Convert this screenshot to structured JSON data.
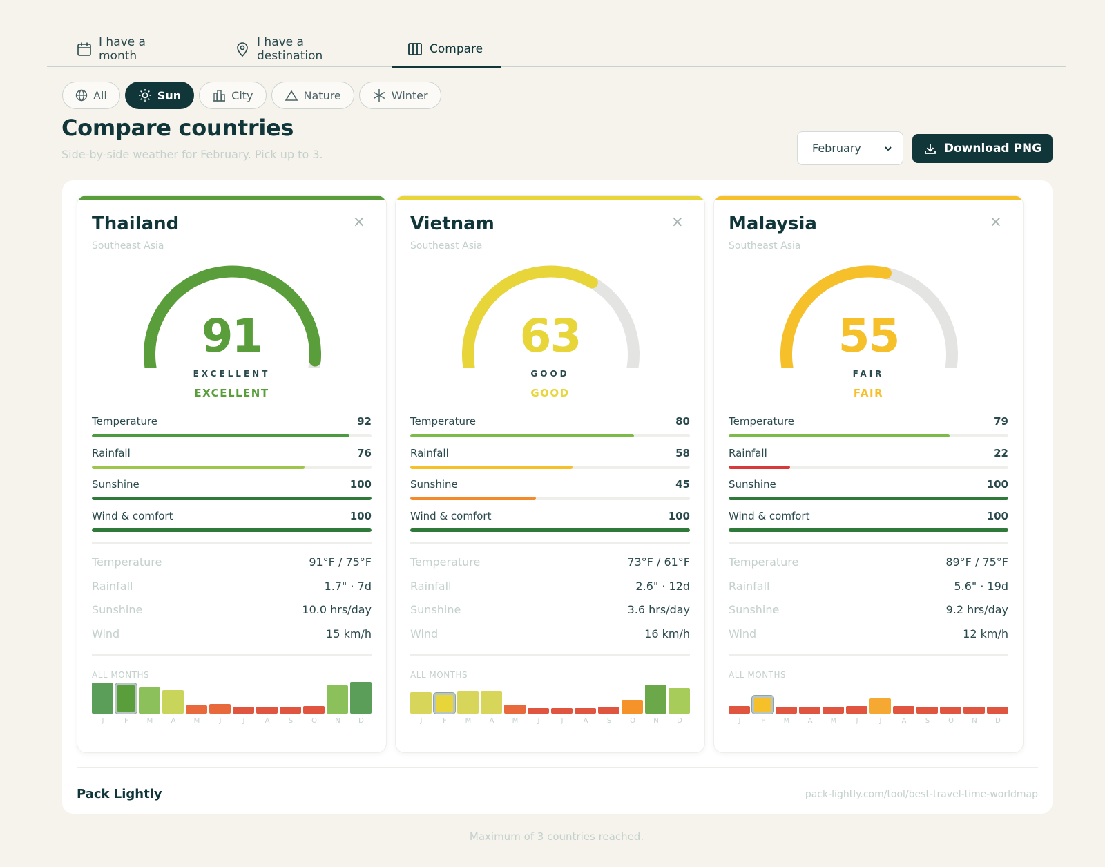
{
  "tabs": [
    {
      "label": "I have a month",
      "icon": "calendar-icon",
      "active": false
    },
    {
      "label": "I have a destination",
      "icon": "map-pin-icon",
      "active": false
    },
    {
      "label": "Compare",
      "icon": "columns-icon",
      "active": true
    }
  ],
  "filters": [
    {
      "label": "All",
      "icon": "globe-icon",
      "active": false
    },
    {
      "label": "Sun",
      "icon": "sun-icon",
      "active": true
    },
    {
      "label": "City",
      "icon": "city-icon",
      "active": false
    },
    {
      "label": "Nature",
      "icon": "mountain-icon",
      "active": false
    },
    {
      "label": "Winter",
      "icon": "snowflake-icon",
      "active": false
    }
  ],
  "header": {
    "title": "Compare countries",
    "subtitle": "Side-by-side weather for February. Pick up to 3.",
    "month_selected": "February",
    "download_label": "Download PNG"
  },
  "colors": {
    "primary": "#10363a",
    "excellent": "#5a9e3c",
    "good": "#e8d53a",
    "fair": "#f5c02a",
    "poor": "#e25c3c"
  },
  "cards": [
    {
      "name": "Thailand",
      "region": "Southeast Asia",
      "score": 91,
      "score_caption": "EXCELLENT",
      "rating": "EXCELLENT",
      "accent": "#5a9e3c",
      "metrics": [
        {
          "label": "Temperature",
          "value": 92,
          "color": "#4a9a3e"
        },
        {
          "label": "Rainfall",
          "value": 76,
          "color": "#9ec64e"
        },
        {
          "label": "Sunshine",
          "value": 100,
          "color": "#2f7a3a"
        },
        {
          "label": "Wind & comfort",
          "value": 100,
          "color": "#2f7a3a"
        }
      ],
      "details": [
        {
          "label": "Temperature",
          "value": "91°F / 75°F"
        },
        {
          "label": "Rainfall",
          "value": "1.7\" · 7d"
        },
        {
          "label": "Sunshine",
          "value": "10.0 hrs/day"
        },
        {
          "label": "Wind",
          "value": "15 km/h"
        }
      ],
      "all_months_label": "ALL MONTHS",
      "months": [
        {
          "label": "J",
          "score": 94,
          "color": "#5a9e5a"
        },
        {
          "label": "F",
          "score": 91,
          "color": "#5a9e3c"
        },
        {
          "label": "M",
          "score": 80,
          "color": "#8cc05a"
        },
        {
          "label": "A",
          "score": 70,
          "color": "#c8d45a"
        },
        {
          "label": "M",
          "score": 25,
          "color": "#e86a3c"
        },
        {
          "label": "J",
          "score": 30,
          "color": "#e86a3c"
        },
        {
          "label": "J",
          "score": 20,
          "color": "#e05540"
        },
        {
          "label": "A",
          "score": 20,
          "color": "#e05540"
        },
        {
          "label": "S",
          "score": 20,
          "color": "#e05540"
        },
        {
          "label": "O",
          "score": 23,
          "color": "#e05540"
        },
        {
          "label": "N",
          "score": 85,
          "color": "#8cc05a"
        },
        {
          "label": "D",
          "score": 96,
          "color": "#5a9e5a"
        }
      ],
      "selected_month": 1
    },
    {
      "name": "Vietnam",
      "region": "Southeast Asia",
      "score": 63,
      "score_caption": "GOOD",
      "rating": "GOOD",
      "accent": "#e8d53a",
      "metrics": [
        {
          "label": "Temperature",
          "value": 80,
          "color": "#7cbb4a"
        },
        {
          "label": "Rainfall",
          "value": 58,
          "color": "#f5c02a"
        },
        {
          "label": "Sunshine",
          "value": 45,
          "color": "#f58a2a"
        },
        {
          "label": "Wind & comfort",
          "value": 100,
          "color": "#2f7a3a"
        }
      ],
      "details": [
        {
          "label": "Temperature",
          "value": "73°F / 61°F"
        },
        {
          "label": "Rainfall",
          "value": "2.6\" · 12d"
        },
        {
          "label": "Sunshine",
          "value": "3.6 hrs/day"
        },
        {
          "label": "Wind",
          "value": "16 km/h"
        }
      ],
      "all_months_label": "ALL MONTHS",
      "months": [
        {
          "label": "J",
          "score": 65,
          "color": "#d8d65a"
        },
        {
          "label": "F",
          "score": 63,
          "color": "#e8d53a"
        },
        {
          "label": "M",
          "score": 68,
          "color": "#d8d65a"
        },
        {
          "label": "A",
          "score": 68,
          "color": "#d8d65a"
        },
        {
          "label": "M",
          "score": 28,
          "color": "#e86a3c"
        },
        {
          "label": "J",
          "score": 17,
          "color": "#e05540"
        },
        {
          "label": "J",
          "score": 17,
          "color": "#e05540"
        },
        {
          "label": "A",
          "score": 17,
          "color": "#e05540"
        },
        {
          "label": "S",
          "score": 20,
          "color": "#e05540"
        },
        {
          "label": "O",
          "score": 42,
          "color": "#f5922a"
        },
        {
          "label": "N",
          "score": 88,
          "color": "#6aa84a"
        },
        {
          "label": "D",
          "score": 78,
          "color": "#a8cc5a"
        }
      ],
      "selected_month": 1
    },
    {
      "name": "Malaysia",
      "region": "Southeast Asia",
      "score": 55,
      "score_caption": "FAIR",
      "rating": "FAIR",
      "accent": "#f5c02a",
      "metrics": [
        {
          "label": "Temperature",
          "value": 79,
          "color": "#7cbb4a"
        },
        {
          "label": "Rainfall",
          "value": 22,
          "color": "#d83a3a"
        },
        {
          "label": "Sunshine",
          "value": 100,
          "color": "#2f7a3a"
        },
        {
          "label": "Wind & comfort",
          "value": 100,
          "color": "#2f7a3a"
        }
      ],
      "details": [
        {
          "label": "Temperature",
          "value": "89°F / 75°F"
        },
        {
          "label": "Rainfall",
          "value": "5.6\" · 19d"
        },
        {
          "label": "Sunshine",
          "value": "9.2 hrs/day"
        },
        {
          "label": "Wind",
          "value": "12 km/h"
        }
      ],
      "all_months_label": "ALL MONTHS",
      "months": [
        {
          "label": "J",
          "score": 22,
          "color": "#e05540"
        },
        {
          "label": "F",
          "score": 55,
          "color": "#f5c02a"
        },
        {
          "label": "M",
          "score": 20,
          "color": "#e05540"
        },
        {
          "label": "A",
          "score": 20,
          "color": "#e05540"
        },
        {
          "label": "M",
          "score": 20,
          "color": "#e05540"
        },
        {
          "label": "J",
          "score": 22,
          "color": "#e05540"
        },
        {
          "label": "J",
          "score": 45,
          "color": "#f5a832"
        },
        {
          "label": "A",
          "score": 22,
          "color": "#e05540"
        },
        {
          "label": "S",
          "score": 20,
          "color": "#e05540"
        },
        {
          "label": "O",
          "score": 20,
          "color": "#e05540"
        },
        {
          "label": "N",
          "score": 20,
          "color": "#e05540"
        },
        {
          "label": "D",
          "score": 20,
          "color": "#e05540"
        }
      ],
      "selected_month": 1
    }
  ],
  "footer": {
    "brand": "Pack Lightly",
    "url": "pack-lightly.com/tool/best-travel-time-worldmap"
  },
  "status_message": "Maximum of 3 countries reached."
}
